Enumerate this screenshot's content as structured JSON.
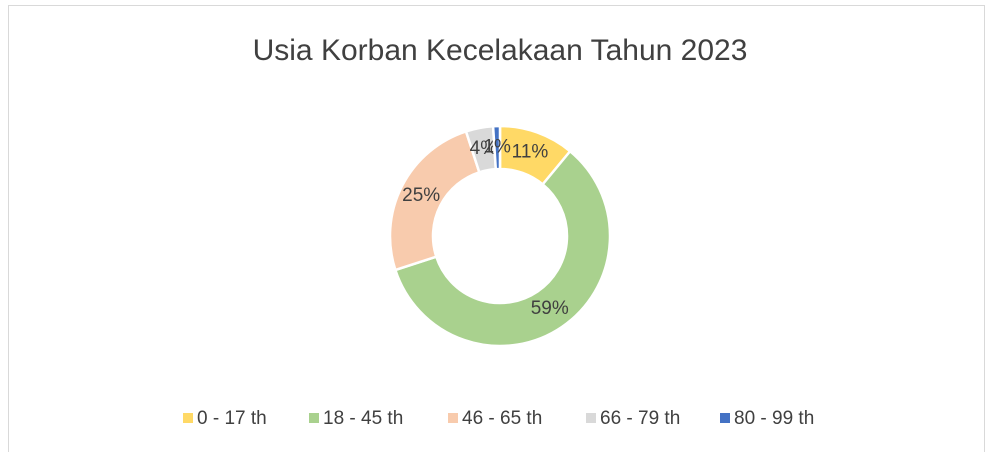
{
  "chart_data": {
    "type": "donut",
    "title": "Usia Korban Kecelakaan Tahun 2023",
    "categories": [
      "0 - 17 th",
      "18 - 45 th",
      "46 - 65 th",
      "66 - 79 th",
      "80 - 99 th"
    ],
    "values": [
      11,
      59,
      25,
      4,
      1
    ],
    "value_labels": [
      "11%",
      "59%",
      "25%",
      "4%",
      "1%"
    ],
    "colors": [
      "#FFD966",
      "#A9D18E",
      "#F8CBAD",
      "#D9D9D9",
      "#4472C4"
    ],
    "legend": "bottom"
  }
}
